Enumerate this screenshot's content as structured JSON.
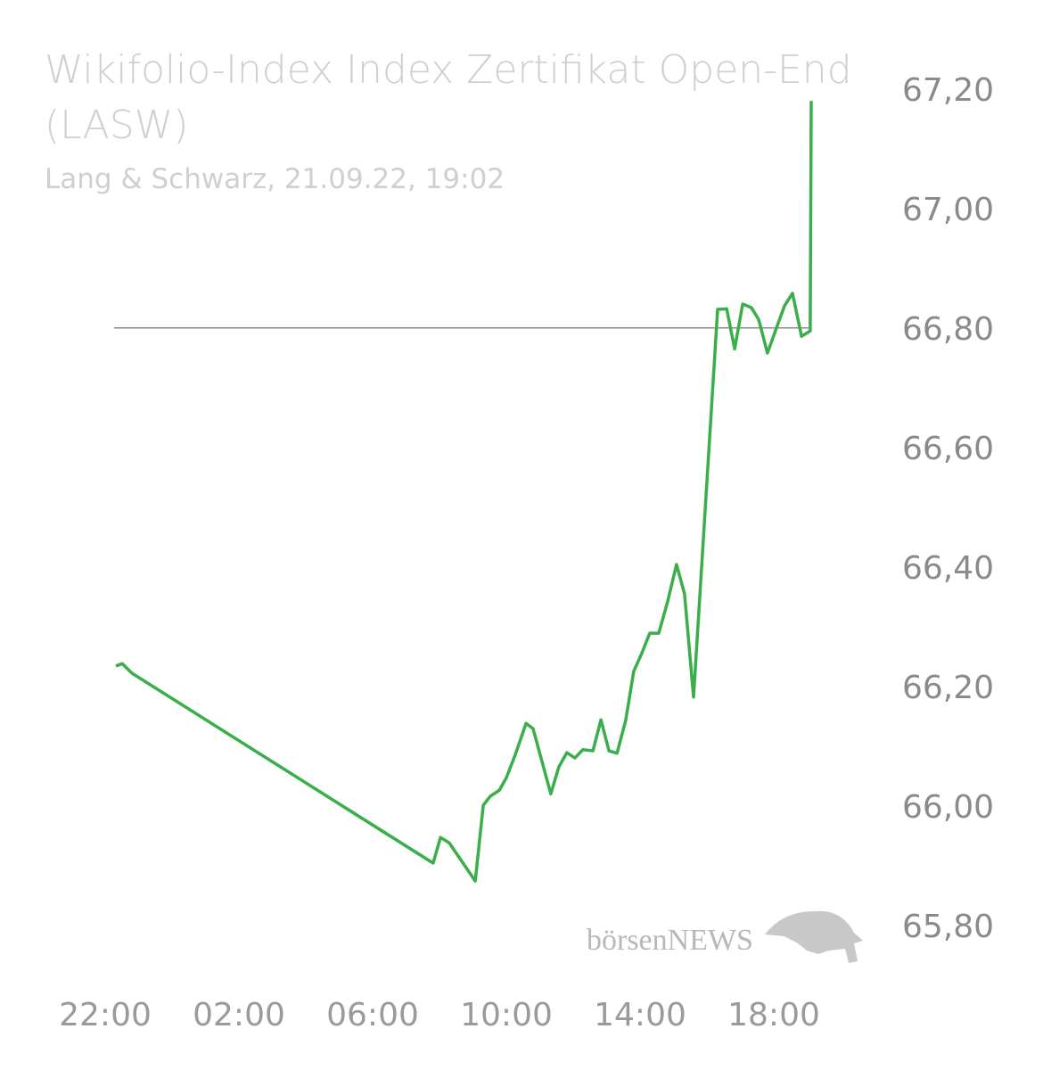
{
  "chart_data": {
    "type": "line",
    "title": "Wikifolio-Index Index Zertifikat Open-End (LASW)",
    "subtitle": "Lang & Schwarz, 21.09.22, 19:02",
    "watermark": "börsenNEWS",
    "x": [
      22.32,
      22.51,
      22.8,
      31.81,
      32.03,
      32.29,
      33.07,
      33.31,
      33.52,
      33.79,
      34.0,
      34.27,
      34.59,
      34.8,
      35.33,
      35.57,
      35.81,
      36.05,
      36.29,
      36.59,
      36.83,
      37.07,
      37.31,
      37.57,
      37.81,
      38.05,
      38.29,
      38.56,
      38.83,
      39.09,
      39.33,
      39.6,
      40.32,
      40.59,
      40.83,
      41.07,
      41.33,
      41.55,
      41.81,
      42.32,
      42.56,
      42.83,
      43.09,
      43.12
    ],
    "series": [
      {
        "color": "#3aae4a",
        "values": [
          66.239,
          66.243,
          66.227,
          65.909,
          65.952,
          65.943,
          65.879,
          66.006,
          66.021,
          66.031,
          66.052,
          66.091,
          66.143,
          66.134,
          66.025,
          66.07,
          66.094,
          66.085,
          66.099,
          66.097,
          66.149,
          66.097,
          66.093,
          66.148,
          66.23,
          66.26,
          66.294,
          66.294,
          66.348,
          66.409,
          66.36,
          66.187,
          66.836,
          66.837,
          66.77,
          66.845,
          66.839,
          66.819,
          66.763,
          66.842,
          66.863,
          66.791,
          66.8,
          67.185
        ]
      }
    ],
    "reference_line": 66.805,
    "xlim": [
      21.7,
      43.5
    ],
    "xticks": [
      {
        "value": 22,
        "label": "22:00"
      },
      {
        "value": 26,
        "label": "02:00"
      },
      {
        "value": 30,
        "label": "06:00"
      },
      {
        "value": 34,
        "label": "10:00"
      },
      {
        "value": 38,
        "label": "14:00"
      },
      {
        "value": 42,
        "label": "18:00"
      }
    ],
    "ylim": [
      65.7,
      67.26
    ],
    "yticks": [
      {
        "value": 65.8,
        "label": "65,80"
      },
      {
        "value": 66.0,
        "label": "66,00"
      },
      {
        "value": 66.2,
        "label": "66,20"
      },
      {
        "value": 66.4,
        "label": "66,40"
      },
      {
        "value": 66.6,
        "label": "66,60"
      },
      {
        "value": 66.8,
        "label": "66,80"
      },
      {
        "value": 67.0,
        "label": "67,00"
      },
      {
        "value": 67.2,
        "label": "67,20"
      }
    ]
  }
}
